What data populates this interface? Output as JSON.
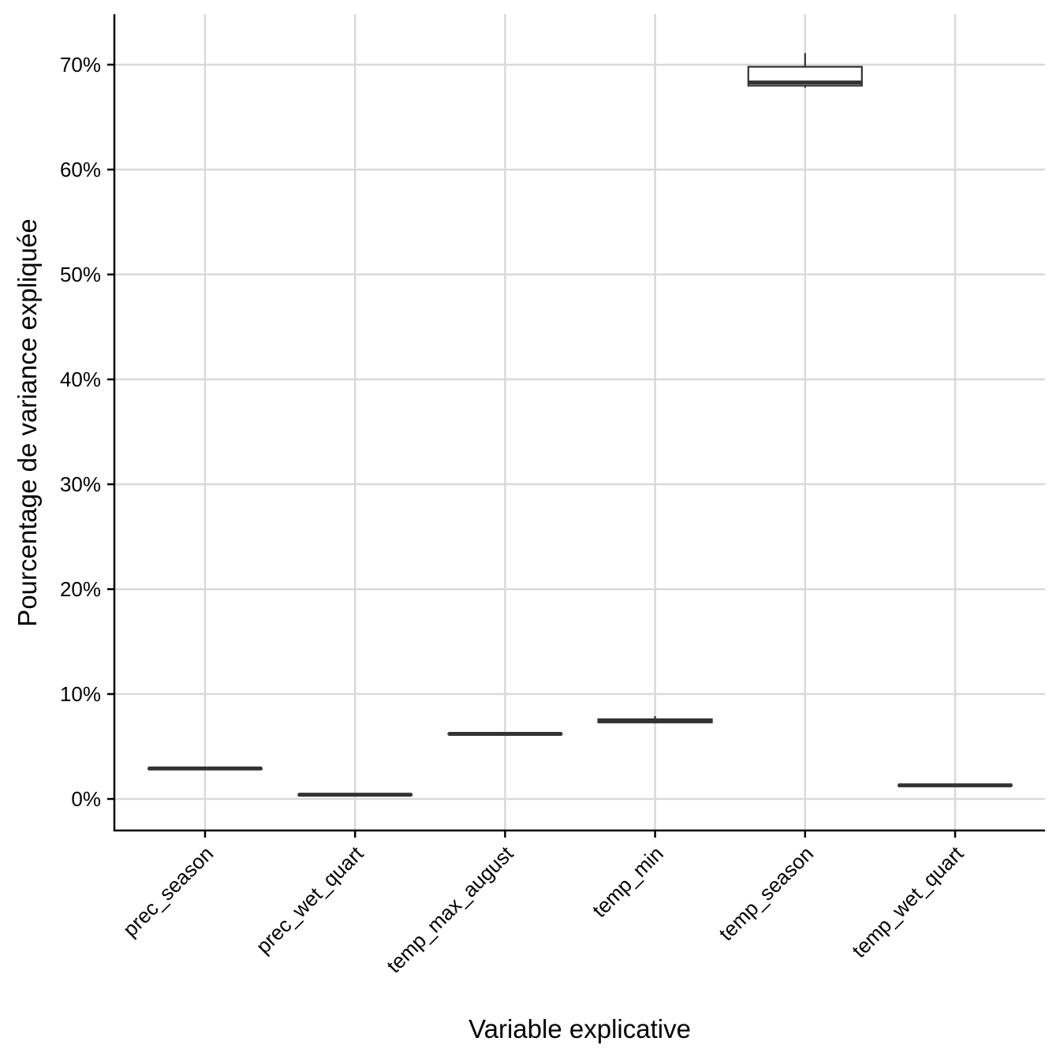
{
  "chart_data": {
    "type": "boxplot",
    "title": "",
    "xlabel": "Variable explicative",
    "ylabel": "Pourcentage de variance expliquée",
    "ylim": [
      -3,
      75
    ],
    "y_ticks": [
      0,
      10,
      20,
      30,
      40,
      50,
      60,
      70
    ],
    "y_tick_labels": [
      "0%",
      "10%",
      "20%",
      "30%",
      "40%",
      "50%",
      "60%",
      "70%"
    ],
    "grid": true,
    "legend": "none",
    "colors": {
      "box_stroke": "#333333",
      "box_fill": "#ffffff",
      "grid": "#d9d9d9",
      "axis": "#000000"
    },
    "categories": [
      "prec_season",
      "prec_wet_quart",
      "temp_max_august",
      "temp_min",
      "temp_season",
      "temp_wet_quart"
    ],
    "boxes": [
      {
        "category": "prec_season",
        "min": 2.9,
        "q1": 2.9,
        "median": 2.9,
        "q3": 2.9,
        "max": 2.9
      },
      {
        "category": "prec_wet_quart",
        "min": 0.4,
        "q1": 0.4,
        "median": 0.4,
        "q3": 0.4,
        "max": 0.4
      },
      {
        "category": "temp_max_august",
        "min": 6.2,
        "q1": 6.2,
        "median": 6.2,
        "q3": 6.2,
        "max": 6.2
      },
      {
        "category": "temp_min",
        "min": 7.2,
        "q1": 7.3,
        "median": 7.4,
        "q3": 7.6,
        "max": 7.9
      },
      {
        "category": "temp_season",
        "min": 67.8,
        "q1": 68.0,
        "median": 68.3,
        "q3": 69.8,
        "max": 71.1
      },
      {
        "category": "temp_wet_quart",
        "min": 1.3,
        "q1": 1.3,
        "median": 1.3,
        "q3": 1.3,
        "max": 1.3
      }
    ]
  }
}
